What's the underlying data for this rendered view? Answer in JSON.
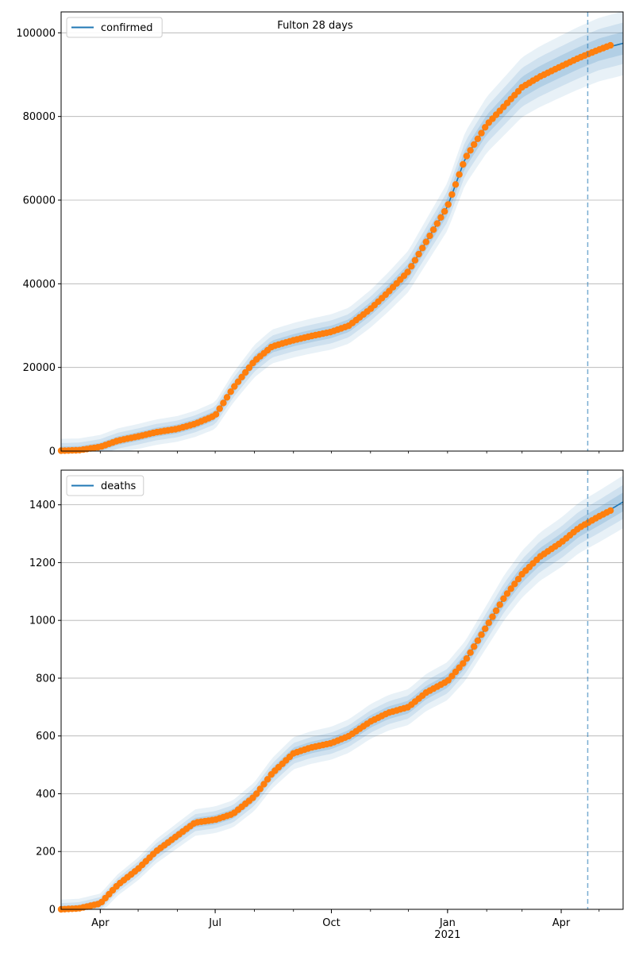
{
  "title": "Fulton 28 days",
  "colors": {
    "model_line": "#1f77b4",
    "observed_points": "#ff7f0e",
    "band": "#1f77b4",
    "grid": "#b0b0b0",
    "forecast_marker": "#1f77b4"
  },
  "forecast_start": "2021-04-22",
  "chart_data": [
    {
      "type": "line",
      "legend": {
        "label": "confirmed",
        "placement": "top-left"
      },
      "xlim": [
        "2020-03-01",
        "2021-05-20"
      ],
      "ylim": [
        0,
        105000
      ],
      "yticks": [
        0,
        20000,
        40000,
        60000,
        80000,
        100000
      ],
      "ytick_labels": [
        "0",
        "20000",
        "40000",
        "60000",
        "80000",
        "100000"
      ],
      "xticks": [],
      "xtick_labels": [],
      "grid": "y",
      "series": [
        {
          "name": "confirmed",
          "x": [
            "2020-03-01",
            "2020-03-15",
            "2020-04-01",
            "2020-04-15",
            "2020-05-01",
            "2020-05-15",
            "2020-06-01",
            "2020-06-15",
            "2020-07-01",
            "2020-07-15",
            "2020-08-01",
            "2020-08-15",
            "2020-09-01",
            "2020-09-15",
            "2020-10-01",
            "2020-10-15",
            "2020-11-01",
            "2020-11-15",
            "2020-12-01",
            "2020-12-15",
            "2021-01-01",
            "2021-01-15",
            "2021-02-01",
            "2021-02-15",
            "2021-03-01",
            "2021-03-15",
            "2021-04-01",
            "2021-04-15",
            "2021-05-01",
            "2021-05-20"
          ],
          "y": [
            100,
            200,
            1000,
            2500,
            3500,
            4500,
            5300,
            6500,
            8500,
            15000,
            21500,
            25000,
            26500,
            27500,
            28500,
            30000,
            34000,
            38000,
            43000,
            50000,
            58500,
            70000,
            78000,
            82500,
            87000,
            89500,
            92000,
            94000,
            96000,
            97500
          ]
        }
      ],
      "band_widths": [
        0.06,
        0.11,
        0.17
      ],
      "scatter": {
        "x": [
          "2020-03-01",
          "2020-03-15",
          "2020-04-01",
          "2020-04-15",
          "2020-05-01",
          "2020-05-15",
          "2020-06-01",
          "2020-06-15",
          "2020-07-01",
          "2020-07-15",
          "2020-08-01",
          "2020-08-15",
          "2020-09-01",
          "2020-09-15",
          "2020-10-01",
          "2020-10-15",
          "2020-11-01",
          "2020-11-15",
          "2020-12-01",
          "2020-12-15",
          "2021-01-01",
          "2021-01-15",
          "2021-02-01",
          "2021-02-15",
          "2021-03-01",
          "2021-03-15",
          "2021-04-01",
          "2021-04-15",
          "2021-05-01",
          "2021-05-10"
        ],
        "y": [
          100,
          200,
          1000,
          2500,
          3500,
          4500,
          5300,
          6500,
          8500,
          15000,
          21500,
          25000,
          26500,
          27500,
          28500,
          30000,
          34000,
          38000,
          43000,
          50000,
          58500,
          70000,
          78000,
          82500,
          87000,
          89500,
          92000,
          94000,
          96000,
          97000
        ]
      }
    },
    {
      "type": "line",
      "legend": {
        "label": "deaths",
        "placement": "top-left"
      },
      "xlim": [
        "2020-03-01",
        "2021-05-20"
      ],
      "ylim": [
        0,
        1520
      ],
      "yticks": [
        0,
        200,
        400,
        600,
        800,
        1000,
        1200,
        1400
      ],
      "ytick_labels": [
        "0",
        "200",
        "400",
        "600",
        "800",
        "1000",
        "1200",
        "1400"
      ],
      "xticks": [
        "2020-04-01",
        "2020-07-01",
        "2020-10-01",
        "2021-01-01",
        "2021-04-01"
      ],
      "xtick_labels": [
        "Apr",
        "Jul",
        "Oct",
        "Jan",
        "Apr"
      ],
      "year_label": {
        "at": "2021-01-01",
        "text": "2021"
      },
      "grid": "y",
      "series": [
        {
          "name": "deaths",
          "x": [
            "2020-03-01",
            "2020-03-15",
            "2020-04-01",
            "2020-04-15",
            "2020-05-01",
            "2020-05-15",
            "2020-06-01",
            "2020-06-15",
            "2020-07-01",
            "2020-07-15",
            "2020-08-01",
            "2020-08-15",
            "2020-09-01",
            "2020-09-15",
            "2020-10-01",
            "2020-10-15",
            "2020-11-01",
            "2020-11-15",
            "2020-12-01",
            "2020-12-15",
            "2021-01-01",
            "2021-01-15",
            "2021-02-01",
            "2021-02-15",
            "2021-03-01",
            "2021-03-15",
            "2021-04-01",
            "2021-04-15",
            "2021-05-01",
            "2021-05-20"
          ],
          "y": [
            0,
            3,
            20,
            85,
            140,
            200,
            255,
            300,
            310,
            330,
            390,
            470,
            540,
            560,
            575,
            600,
            650,
            680,
            700,
            750,
            790,
            860,
            980,
            1080,
            1160,
            1220,
            1270,
            1320,
            1360,
            1410
          ]
        }
      ],
      "band_widths": [
        0.05,
        0.09,
        0.14
      ],
      "scatter": {
        "x": [
          "2020-03-01",
          "2020-03-15",
          "2020-04-01",
          "2020-04-15",
          "2020-05-01",
          "2020-05-15",
          "2020-06-01",
          "2020-06-15",
          "2020-07-01",
          "2020-07-15",
          "2020-08-01",
          "2020-08-15",
          "2020-09-01",
          "2020-09-15",
          "2020-10-01",
          "2020-10-15",
          "2020-11-01",
          "2020-11-15",
          "2020-12-01",
          "2020-12-15",
          "2021-01-01",
          "2021-01-15",
          "2021-02-01",
          "2021-02-15",
          "2021-03-01",
          "2021-03-15",
          "2021-04-01",
          "2021-04-15",
          "2021-05-01",
          "2021-05-10"
        ],
        "y": [
          0,
          3,
          20,
          85,
          140,
          200,
          255,
          300,
          310,
          330,
          390,
          470,
          540,
          560,
          575,
          600,
          650,
          680,
          700,
          750,
          790,
          860,
          980,
          1080,
          1160,
          1220,
          1270,
          1320,
          1360,
          1380
        ]
      }
    }
  ]
}
